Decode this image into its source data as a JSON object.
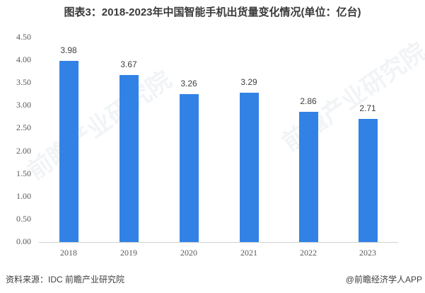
{
  "header": {
    "title": "图表3：2018-2023年中国智能手机出货量变化情况(单位：亿台)"
  },
  "footer": {
    "source": "资料来源：IDC 前瞻产业研究院",
    "credit": "@前瞻经济学人APP"
  },
  "watermark": {
    "text": "前瞻产业研究院"
  },
  "yticks": [
    "4.50",
    "4.00",
    "3.50",
    "3.00",
    "2.50",
    "2.00",
    "1.50",
    "1.00",
    "0.50",
    "0.00"
  ],
  "colors": {
    "bar": "#3282e6"
  },
  "chart_data": {
    "type": "bar",
    "title": "图表3：2018-2023年中国智能手机出货量变化情况(单位：亿台)",
    "xlabel": "",
    "ylabel": "亿台",
    "categories": [
      "2018",
      "2019",
      "2020",
      "2021",
      "2022",
      "2023"
    ],
    "values": [
      3.98,
      3.67,
      3.26,
      3.29,
      2.86,
      2.71
    ],
    "value_labels": [
      "3.98",
      "3.67",
      "3.26",
      "3.29",
      "2.86",
      "2.71"
    ],
    "ylim": [
      0,
      4.5
    ],
    "ytick_step": 0.5,
    "grid": false,
    "legend": "none"
  }
}
